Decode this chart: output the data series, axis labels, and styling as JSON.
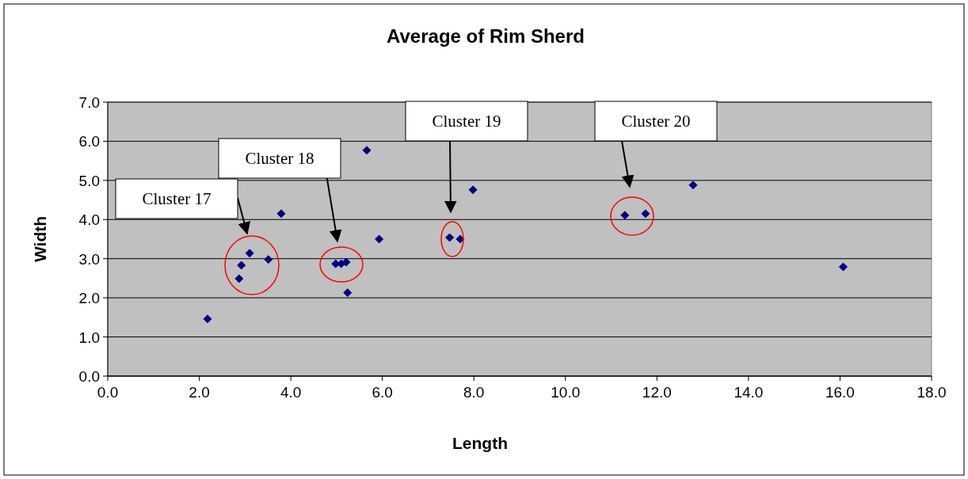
{
  "chart_data": {
    "type": "scatter",
    "title": "Average of Rim Sherd",
    "xlabel": "Length",
    "ylabel": "Width",
    "x": [
      2.18,
      2.87,
      2.92,
      3.1,
      3.51,
      3.79,
      4.98,
      5.1,
      5.21,
      5.24,
      5.66,
      5.93,
      7.47,
      7.7,
      7.98,
      11.3,
      11.75,
      12.79,
      16.07
    ],
    "values": [
      1.46,
      2.49,
      2.83,
      3.14,
      2.98,
      4.15,
      2.87,
      2.87,
      2.91,
      2.13,
      5.77,
      3.5,
      3.54,
      3.5,
      4.76,
      4.11,
      4.15,
      4.88,
      2.79
    ],
    "color": "#000080",
    "marker": "diamond",
    "xlim": [
      0,
      18
    ],
    "xticks": [
      {
        "value": 0,
        "label": "0.0"
      },
      {
        "value": 2,
        "label": "2.0"
      },
      {
        "value": 4,
        "label": "4.0"
      },
      {
        "value": 6,
        "label": "6.0"
      },
      {
        "value": 8,
        "label": "8.0"
      },
      {
        "value": 10,
        "label": "10.0"
      },
      {
        "value": 12,
        "label": "12.0"
      },
      {
        "value": 14,
        "label": "14.0"
      },
      {
        "value": 16,
        "label": "16.0"
      },
      {
        "value": 18,
        "label": "18.0"
      }
    ],
    "ylim": [
      0,
      7
    ],
    "yticks": [
      {
        "value": 0,
        "label": "0.0"
      },
      {
        "value": 1,
        "label": "1.0"
      },
      {
        "value": 2,
        "label": "2.0"
      },
      {
        "value": 3,
        "label": "3.0"
      },
      {
        "value": 4,
        "label": "4.0"
      },
      {
        "value": 5,
        "label": "5.0"
      },
      {
        "value": 6,
        "label": "6.0"
      },
      {
        "value": 7,
        "label": "7.0"
      }
    ],
    "grid": "y",
    "annotations": [
      "Cluster 17",
      "Cluster 18",
      "Cluster 19",
      "Cluster 20"
    ]
  }
}
